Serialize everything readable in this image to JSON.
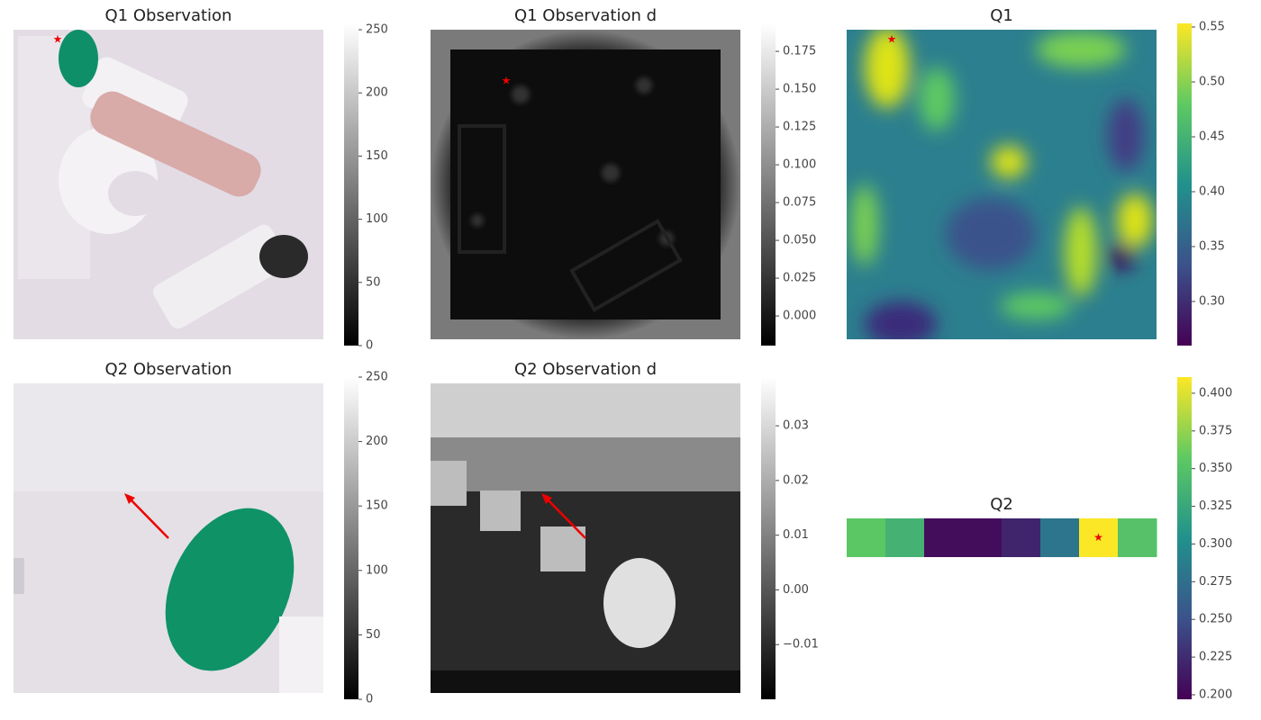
{
  "chart_data": [
    {
      "type": "image",
      "title": "Q1 Observation",
      "colormap": "gray",
      "ylim": [
        0,
        255
      ],
      "yticks": [
        0,
        50,
        100,
        150,
        200,
        250
      ]
    },
    {
      "type": "image",
      "title": "Q1 Observation d",
      "colormap": "gray",
      "ylim": [
        -0.0196,
        0.1935
      ],
      "yticks": [
        {
          "value": 0,
          "label": "0.000"
        },
        0.025,
        {
          "value": 0.05,
          "label": "0.050"
        },
        0.075,
        {
          "value": 0.1,
          "label": "0.100"
        },
        0.125,
        {
          "value": 0.15,
          "label": "0.150"
        },
        0.175
      ]
    },
    {
      "type": "image",
      "title": "Q1",
      "colormap": "viridis",
      "ylim": [
        0.2598,
        0.5533
      ],
      "yticks": [
        {
          "value": 0.3,
          "label": "0.30"
        },
        0.35,
        {
          "value": 0.4,
          "label": "0.40"
        },
        0.45,
        {
          "value": 0.5,
          "label": "0.50"
        },
        0.55
      ]
    },
    {
      "type": "image",
      "title": "Q2 Observation",
      "colormap": "gray",
      "ylim": [
        0,
        250
      ],
      "yticks": [
        0,
        50,
        100,
        150,
        200,
        250
      ]
    },
    {
      "type": "image",
      "title": "Q2 Observation d",
      "colormap": "gray",
      "ylim": [
        -0.02,
        0.0389
      ],
      "yticks": [
        {
          "value": -0.01,
          "label": "−0.01"
        },
        {
          "value": 0,
          "label": "0.00"
        },
        0.01,
        0.02,
        0.03
      ]
    },
    {
      "type": "heatmap",
      "title": "Q2",
      "colormap": "viridis",
      "values": [
        0.355,
        0.335,
        0.205,
        0.205,
        0.22,
        0.28,
        0.41,
        0.35
      ],
      "ylim": [
        0.197,
        0.4107
      ],
      "yticks": [
        {
          "value": 0.2,
          "label": "0.200"
        },
        0.225,
        {
          "value": 0.25,
          "label": "0.250"
        },
        0.275,
        {
          "value": 0.3,
          "label": "0.300"
        },
        0.325,
        {
          "value": 0.35,
          "label": "0.350"
        },
        0.375,
        {
          "value": 0.4,
          "label": "0.400"
        }
      ]
    }
  ]
}
